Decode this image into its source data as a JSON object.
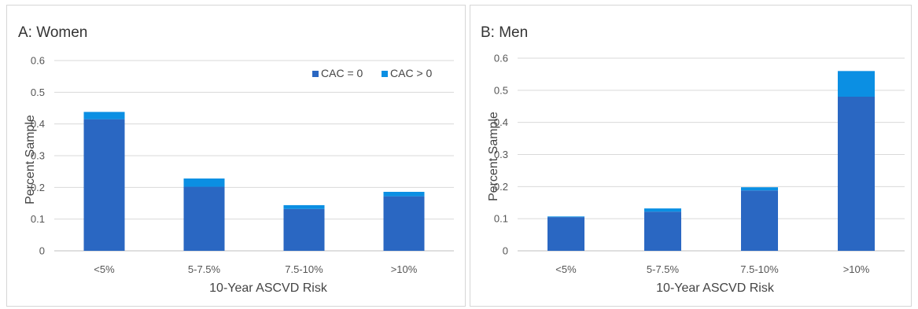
{
  "chart_data": [
    {
      "type": "bar",
      "stacked": true,
      "title": "A: Women",
      "xlabel": "10-Year ASCVD Risk",
      "ylabel": "Percent Sample",
      "categories": [
        "<5%",
        "5-7.5%",
        "7.5-10%",
        ">10%"
      ],
      "ylim": [
        0,
        0.6
      ],
      "yticks": [
        "0",
        "0.1",
        "0.2",
        "0.3",
        "0.4",
        "0.5",
        "0.6"
      ],
      "grid": true,
      "legend": "top-right",
      "series": [
        {
          "name": "CAC = 0",
          "color": "#2a67c2",
          "values": [
            0.415,
            0.202,
            0.132,
            0.172
          ]
        },
        {
          "name": "CAC > 0",
          "color": "#0b8fe3",
          "values": [
            0.023,
            0.026,
            0.012,
            0.014
          ]
        }
      ]
    },
    {
      "type": "bar",
      "stacked": true,
      "title": "B: Men",
      "xlabel": "10-Year ASCVD Risk",
      "ylabel": "Percent Sample",
      "categories": [
        "<5%",
        "5-7.5%",
        "7.5-10%",
        ">10%"
      ],
      "ylim": [
        0,
        0.6
      ],
      "yticks": [
        "0",
        "0.1",
        "0.2",
        "0.3",
        "0.4",
        "0.5",
        "0.6"
      ],
      "grid": true,
      "legend": "none",
      "series": [
        {
          "name": "CAC = 0",
          "color": "#2a67c2",
          "values": [
            0.105,
            0.122,
            0.188,
            0.48
          ]
        },
        {
          "name": "CAC > 0",
          "color": "#0b8fe3",
          "values": [
            0.002,
            0.01,
            0.01,
            0.08
          ]
        }
      ]
    }
  ]
}
